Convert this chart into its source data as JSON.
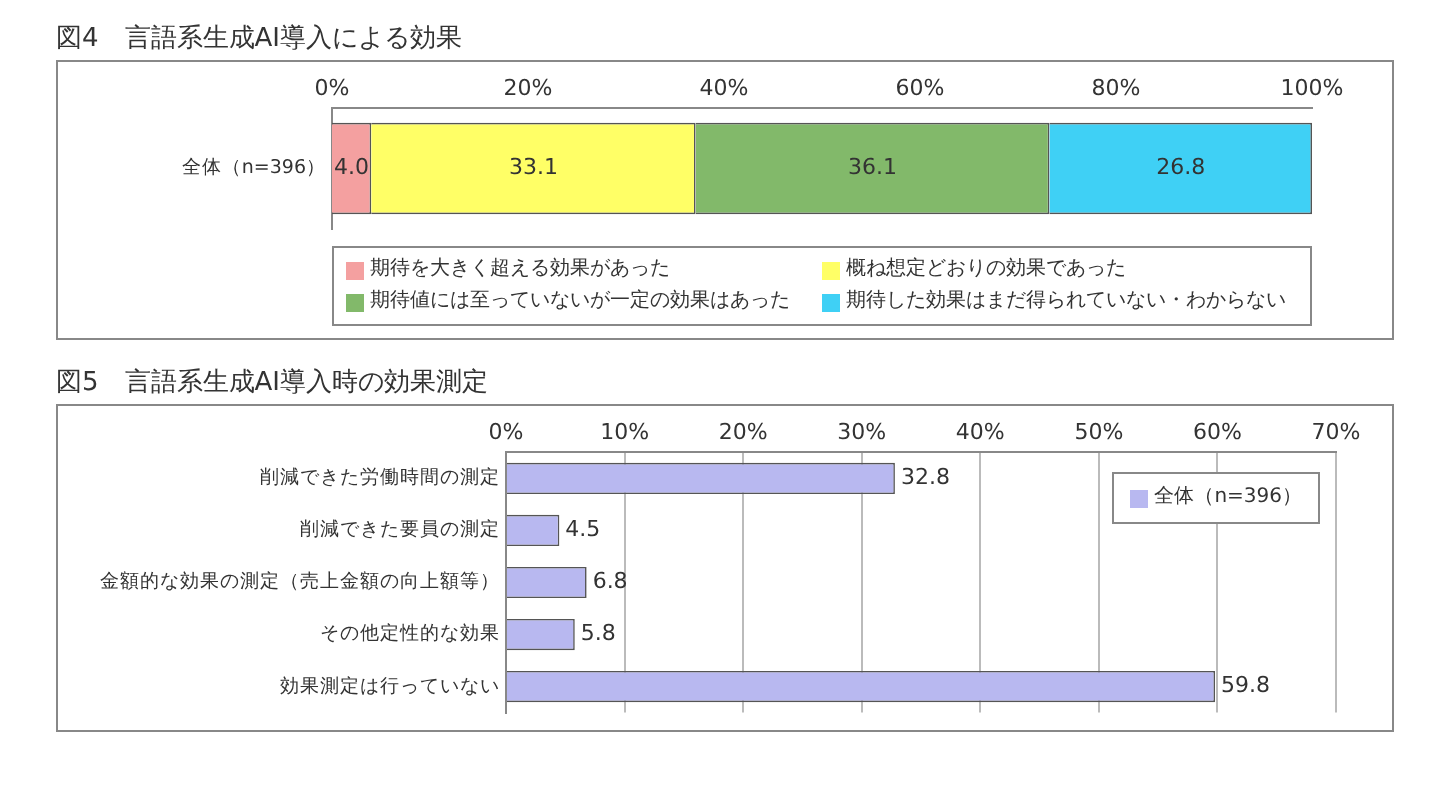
{
  "chart_data": [
    {
      "type": "bar",
      "title": "図4　言語系生成AI導入による効果",
      "orientation": "horizontal",
      "stacked": true,
      "categories": [
        "全体（n=396）"
      ],
      "series": [
        {
          "name": "期待を大きく超える効果があった",
          "color": "#f4a0a0",
          "values": [
            4.0
          ],
          "value_labels": [
            "4.0"
          ]
        },
        {
          "name": "概ね想定どおりの効果であった",
          "color": "#ffff66",
          "values": [
            33.1
          ],
          "value_labels": [
            "33.1"
          ]
        },
        {
          "name": "期待値には至っていないが一定の効果はあった",
          "color": "#82b96a",
          "values": [
            36.1
          ],
          "value_labels": [
            "36.1"
          ]
        },
        {
          "name": "期待した効果はまだ得られていない・わからない",
          "color": "#3fd0f5",
          "values": [
            26.8
          ],
          "value_labels": [
            "26.8"
          ]
        }
      ],
      "xlim": [
        0,
        100
      ],
      "xticks": [
        {
          "value": 0,
          "label": "0%"
        },
        {
          "value": 20,
          "label": "20%"
        },
        {
          "value": 40,
          "label": "40%"
        },
        {
          "value": 60,
          "label": "60%"
        },
        {
          "value": 80,
          "label": "80%"
        },
        {
          "value": 100,
          "label": "100%"
        }
      ],
      "grid": false,
      "legend": "bottom"
    },
    {
      "type": "bar",
      "title": "図5　言語系生成AI導入時の効果測定",
      "orientation": "horizontal",
      "categories": [
        "削減できた労働時間の測定",
        "削減できた要員の測定",
        "金額的な効果の測定（売上金額の向上額等）",
        "その他定性的な効果",
        "効果測定は行っていない"
      ],
      "series": [
        {
          "name": "全体（n=396）",
          "color": "#b8b8f0",
          "values": [
            32.8,
            4.5,
            6.8,
            5.8,
            59.8
          ]
        }
      ],
      "xlim": [
        0,
        70
      ],
      "xticks": [
        {
          "value": 0,
          "label": "0%"
        },
        {
          "value": 10,
          "label": "10%"
        },
        {
          "value": 20,
          "label": "20%"
        },
        {
          "value": 30,
          "label": "30%"
        },
        {
          "value": 40,
          "label": "40%"
        },
        {
          "value": 50,
          "label": "50%"
        },
        {
          "value": 60,
          "label": "60%"
        },
        {
          "value": 70,
          "label": "70%"
        }
      ],
      "grid": "x",
      "legend": "top right",
      "data_labels": true
    }
  ]
}
